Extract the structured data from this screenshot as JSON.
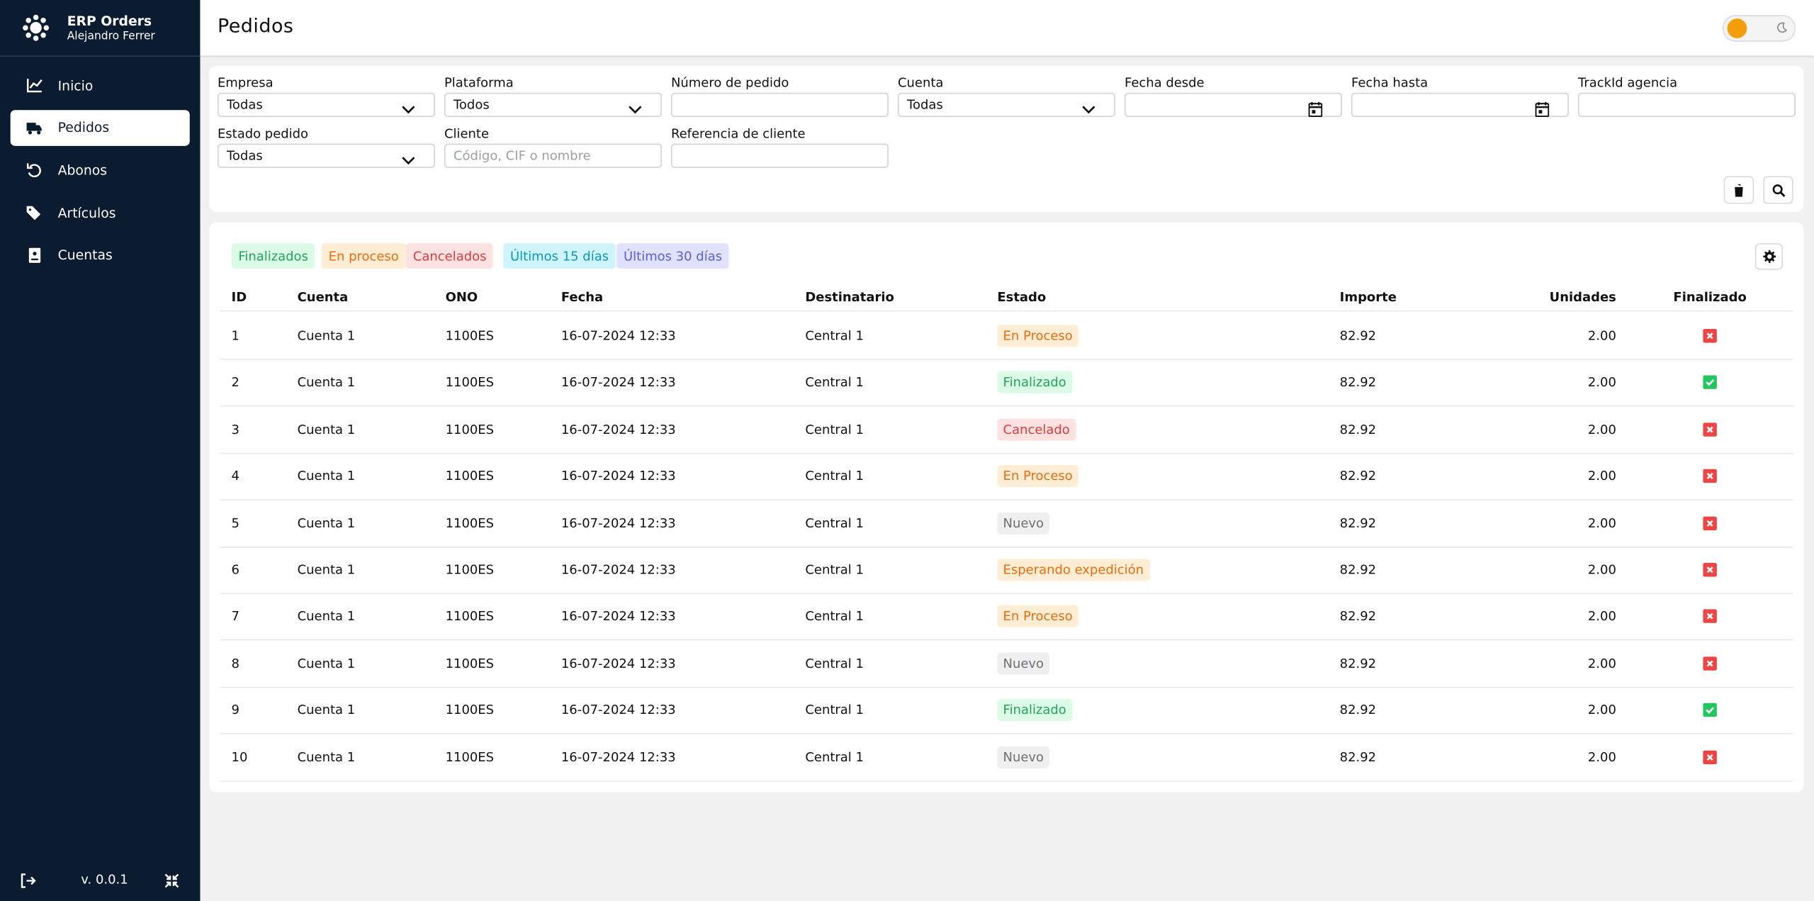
{
  "sidebar": {
    "app_title": "ERP Orders",
    "user": "Alejandro Ferrer",
    "nav": [
      {
        "label": "Inicio",
        "icon": "chart"
      },
      {
        "label": "Pedidos",
        "icon": "truck",
        "active": true
      },
      {
        "label": "Abonos",
        "icon": "undo"
      },
      {
        "label": "Artículos",
        "icon": "tags"
      },
      {
        "label": "Cuentas",
        "icon": "card"
      }
    ],
    "version": "v. 0.0.1"
  },
  "header": {
    "title": "Pedidos"
  },
  "filters": [
    {
      "label": "Empresa",
      "value": "Todas",
      "kind": "select"
    },
    {
      "label": "Plataforma",
      "value": "Todos",
      "kind": "select"
    },
    {
      "label": "Número de pedido",
      "kind": "text"
    },
    {
      "label": "Cuenta",
      "value": "Todas",
      "kind": "select"
    },
    {
      "label": "Fecha desde",
      "kind": "date"
    },
    {
      "label": "Fecha hasta",
      "kind": "date"
    },
    {
      "label": "TrackId agencia",
      "kind": "text"
    },
    {
      "label": "Estado pedido",
      "value": "Todas",
      "kind": "select"
    },
    {
      "label": "Cliente",
      "placeholder": "Código, CIF o nombre",
      "kind": "text"
    },
    {
      "label": "Referencia de cliente",
      "kind": "text"
    }
  ],
  "quick_filters": [
    {
      "label": "Finalizados",
      "tone": "green"
    },
    {
      "label": "En proceso",
      "tone": "orange"
    },
    {
      "label": "Cancelados",
      "tone": "red"
    },
    {
      "label": "Últimos 15 días",
      "tone": "cyan"
    },
    {
      "label": "Últimos 30 días",
      "tone": "violet"
    }
  ],
  "table": {
    "columns": [
      "ID",
      "Cuenta",
      "ONO",
      "Fecha",
      "Destinatario",
      "Estado",
      "Importe",
      "Unidades",
      "Finalizado"
    ],
    "rows": [
      {
        "id": "1",
        "cuenta": "Cuenta 1",
        "ono": "1100ES",
        "fecha": "16-07-2024 12:33",
        "destinatario": "Central 1",
        "estado": "En Proceso",
        "tone": "orange",
        "importe": "82.92",
        "unidades": "2.00",
        "finalizado": false
      },
      {
        "id": "2",
        "cuenta": "Cuenta 1",
        "ono": "1100ES",
        "fecha": "16-07-2024 12:33",
        "destinatario": "Central 1",
        "estado": "Finalizado",
        "tone": "green",
        "importe": "82.92",
        "unidades": "2.00",
        "finalizado": true
      },
      {
        "id": "3",
        "cuenta": "Cuenta 1",
        "ono": "1100ES",
        "fecha": "16-07-2024 12:33",
        "destinatario": "Central 1",
        "estado": "Cancelado",
        "tone": "red",
        "importe": "82.92",
        "unidades": "2.00",
        "finalizado": false
      },
      {
        "id": "4",
        "cuenta": "Cuenta 1",
        "ono": "1100ES",
        "fecha": "16-07-2024 12:33",
        "destinatario": "Central 1",
        "estado": "En Proceso",
        "tone": "orange",
        "importe": "82.92",
        "unidades": "2.00",
        "finalizado": false
      },
      {
        "id": "5",
        "cuenta": "Cuenta 1",
        "ono": "1100ES",
        "fecha": "16-07-2024 12:33",
        "destinatario": "Central 1",
        "estado": "Nuevo",
        "tone": "gray",
        "importe": "82.92",
        "unidades": "2.00",
        "finalizado": false
      },
      {
        "id": "6",
        "cuenta": "Cuenta 1",
        "ono": "1100ES",
        "fecha": "16-07-2024 12:33",
        "destinatario": "Central 1",
        "estado": "Esperando expedición",
        "tone": "orange",
        "importe": "82.92",
        "unidades": "2.00",
        "finalizado": false
      },
      {
        "id": "7",
        "cuenta": "Cuenta 1",
        "ono": "1100ES",
        "fecha": "16-07-2024 12:33",
        "destinatario": "Central 1",
        "estado": "En Proceso",
        "tone": "orange",
        "importe": "82.92",
        "unidades": "2.00",
        "finalizado": false
      },
      {
        "id": "8",
        "cuenta": "Cuenta 1",
        "ono": "1100ES",
        "fecha": "16-07-2024 12:33",
        "destinatario": "Central 1",
        "estado": "Nuevo",
        "tone": "gray",
        "importe": "82.92",
        "unidades": "2.00",
        "finalizado": false
      },
      {
        "id": "9",
        "cuenta": "Cuenta 1",
        "ono": "1100ES",
        "fecha": "16-07-2024 12:33",
        "destinatario": "Central 1",
        "estado": "Finalizado",
        "tone": "green",
        "importe": "82.92",
        "unidades": "2.00",
        "finalizado": true
      },
      {
        "id": "10",
        "cuenta": "Cuenta 1",
        "ono": "1100ES",
        "fecha": "16-07-2024 12:33",
        "destinatario": "Central 1",
        "estado": "Nuevo",
        "tone": "gray",
        "importe": "82.92",
        "unidades": "2.00",
        "finalizado": false
      }
    ]
  }
}
